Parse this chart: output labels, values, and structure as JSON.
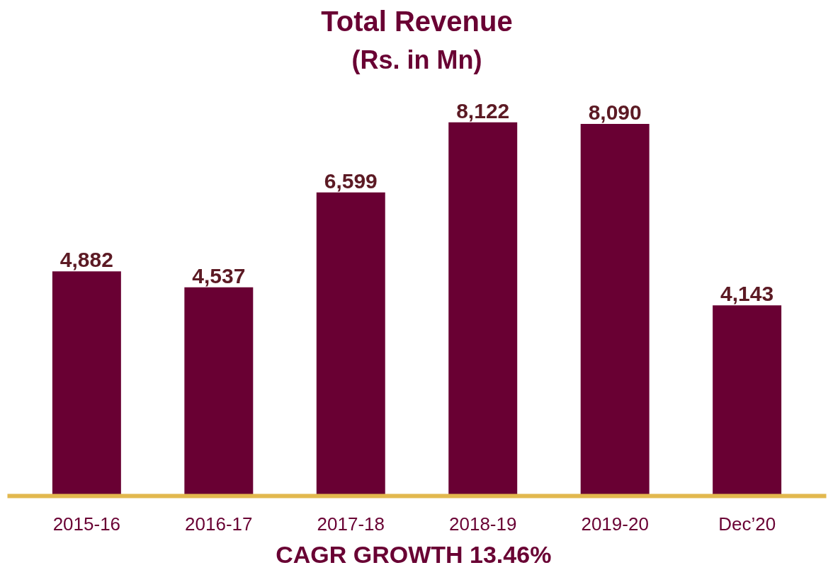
{
  "chart_data": {
    "type": "bar",
    "title": "Total Revenue",
    "subtitle": "(Rs. in Mn)",
    "categories": [
      "2015-16",
      "2016-17",
      "2017-18",
      "2018-19",
      "2019-20",
      "Dec’20"
    ],
    "values": [
      4882,
      4537,
      6599,
      8122,
      8090,
      4143
    ],
    "value_labels": [
      "4,882",
      "4,537",
      "6,599",
      "8,122",
      "8,090",
      "4,143"
    ],
    "color": "#690033",
    "grid": false,
    "annotations": [
      "CAGR GROWTH  13.46%"
    ]
  }
}
